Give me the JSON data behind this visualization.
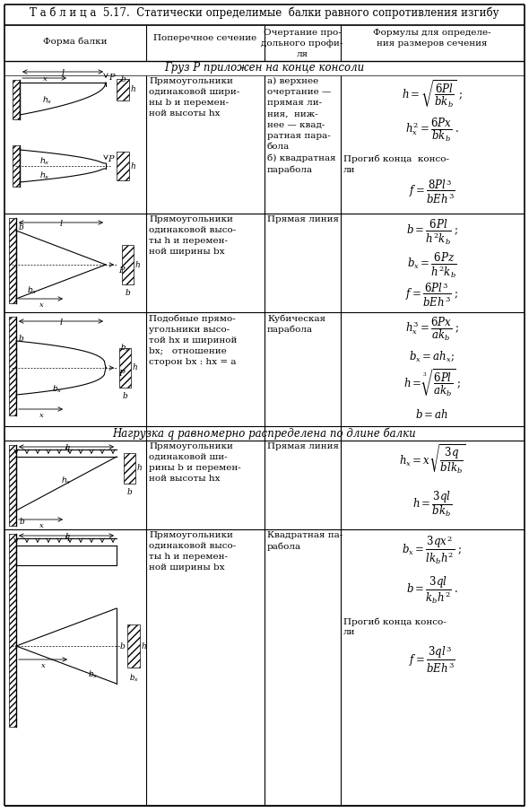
{
  "title": "Т а б л и ц а  5.17.  Статически определимые  балки равного сопротивления изгибу",
  "col_header0": "Форма балки",
  "col_header1": "Поперечное сечение",
  "col_header2": "Очертание про-\nдольного профи-\nля",
  "col_header3": "Формулы для определе-\nния размеров сечения",
  "sec1": "Груз P приложен на конце консоли",
  "sec2": "Нагрузка q равномерно распределена по длине балки",
  "r1c1": "Прямоугольники\nодинаковой шири-\nны b и перемен-\nной высоты hx",
  "r1c2": "а) верхнее\nочертание —\nпрямая ли-\nния,  ниж-\nнее — квад-\nратная пара-\nбола\nб) квадратная\nпарабола",
  "r2c1": "Прямоугольники\nодинаковой высо-\nты h и перемен-\nной ширины bx",
  "r2c2": "Прямая линия",
  "r3c1": "Подобные прямо-\nугольники высо-\nтой hx и шириной\nbx;   отношение\nсторон bx : hx = a",
  "r3c2": "Кубическая\nпарабола",
  "r4c1": "Прямоугольники\nодинаковой ши-\nрины b и перемен-\nной высоты hx",
  "r4c2": "Прямая линия",
  "r5c1": "Прямоугольники\nодинаковой высо-\nты h и перемен-\nной ширины bx",
  "r5c2": "Квадратная па-\nрабола",
  "bg": "#ffffff",
  "col_splits": [
    5,
    163,
    295,
    380,
    585
  ],
  "row_splits": [
    5,
    28,
    68,
    84,
    238,
    348,
    475,
    491,
    590,
    898
  ],
  "figw": 5.9,
  "figh": 9.05
}
